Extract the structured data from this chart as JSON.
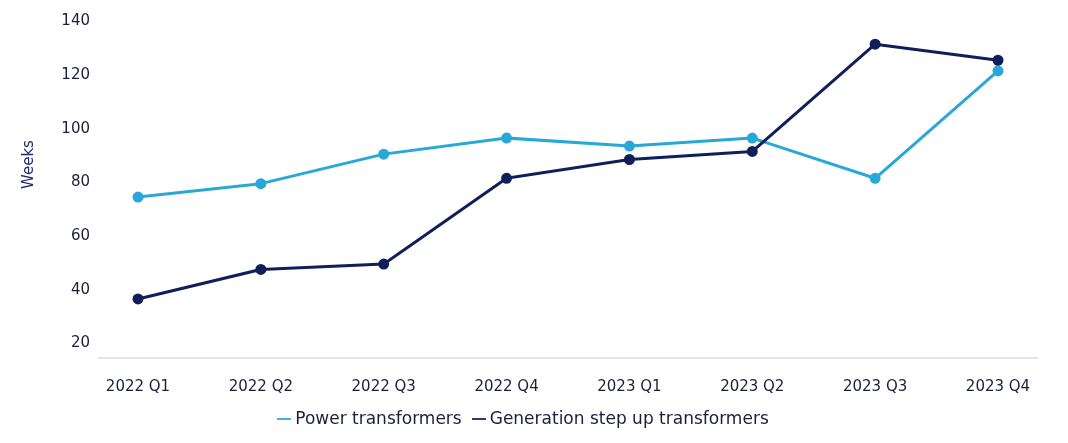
{
  "chart_data": {
    "type": "line",
    "ylabel": "Weeks",
    "categories": [
      "2022 Q1",
      "2022 Q2",
      "2022 Q3",
      "2022 Q4",
      "2023 Q1",
      "2023 Q2",
      "2023 Q3",
      "2023 Q4"
    ],
    "series": [
      {
        "name": "Power transformers",
        "color": "#29a8d8",
        "values": [
          74,
          79,
          90,
          96,
          93,
          96,
          81,
          121
        ]
      },
      {
        "name": "Generation step up transformers",
        "color": "#0f1f5a",
        "values": [
          36,
          47,
          49,
          81,
          88,
          91,
          131,
          125
        ]
      }
    ],
    "ylim": [
      14,
      140
    ],
    "yticks": [
      20,
      40,
      60,
      80,
      100,
      120,
      140
    ],
    "grid": false,
    "legend": "bottom",
    "marker": "circle",
    "line_style": "solid"
  }
}
